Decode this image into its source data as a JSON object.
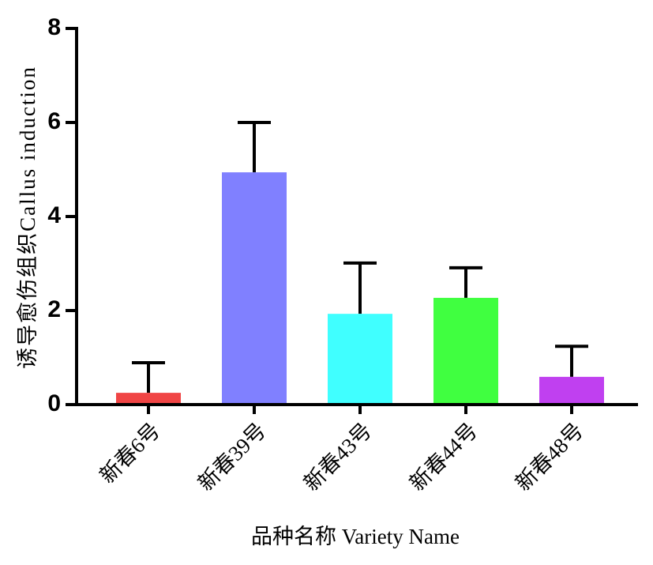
{
  "chart_data": {
    "type": "bar",
    "y_label": "诱导愈伤组织Callus induction",
    "x_label": "品种名称 Variety Name",
    "categories": [
      "新春6号",
      "新春39号",
      "新春43号",
      "新春44号",
      "新春48号"
    ],
    "values": [
      0.25,
      4.94,
      1.93,
      2.27,
      0.59
    ],
    "errors": [
      0.64,
      1.06,
      1.08,
      0.64,
      0.65
    ],
    "colors": [
      "#f04545",
      "#8080ff",
      "#40ffff",
      "#40ff40",
      "#c040f0"
    ],
    "ylim": [
      0,
      8
    ],
    "yticks": [
      0,
      2,
      4,
      6,
      8
    ],
    "grid": false
  }
}
